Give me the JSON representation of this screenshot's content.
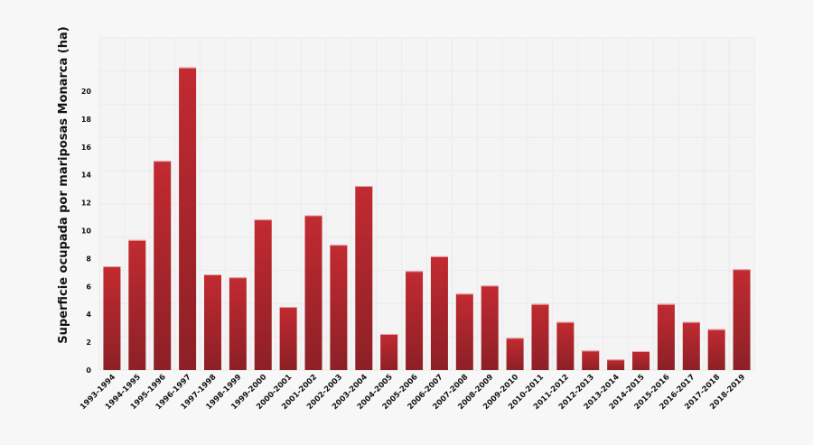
{
  "chart_data": {
    "type": "bar",
    "title": "",
    "xlabel": "",
    "ylabel": "Superficie ocupada por mariposas Monarca (ha)",
    "ylim": [
      0,
      22
    ],
    "yticks": [
      0,
      2,
      4,
      6,
      8,
      10,
      12,
      14,
      16,
      18,
      20
    ],
    "grid": true,
    "legend": null,
    "categories": [
      "1993-1994",
      "1994-1995",
      "1995-1996",
      "1996-1997",
      "1997-1998",
      "1998-1999",
      "1999-2000",
      "2000-2001",
      "2001-2002",
      "2002-2003",
      "2003-2004",
      "2004-2005",
      "2005-2006",
      "2006-2007",
      "2007-2008",
      "2008-2009",
      "2009-2010",
      "2010-2011",
      "2011-2012",
      "2012-2013",
      "2013-2014",
      "2014-2015",
      "2015-2016",
      "2016-2017",
      "2017-2018",
      "2018-2019"
    ],
    "values": [
      7.44,
      9.33,
      15.0,
      21.7,
      6.86,
      6.65,
      10.8,
      4.53,
      11.1,
      8.98,
      13.2,
      2.59,
      7.1,
      8.16,
      5.48,
      6.06,
      2.31,
      4.74,
      3.45,
      1.4,
      0.76,
      1.36,
      4.74,
      3.45,
      2.93,
      7.23
    ],
    "colors": {
      "bar_top": "#c22a31",
      "bar_bottom": "#8c2026",
      "background": "#f7f7f7",
      "plot_background": "#f4f4f4",
      "grid": "#ebebeb"
    }
  }
}
